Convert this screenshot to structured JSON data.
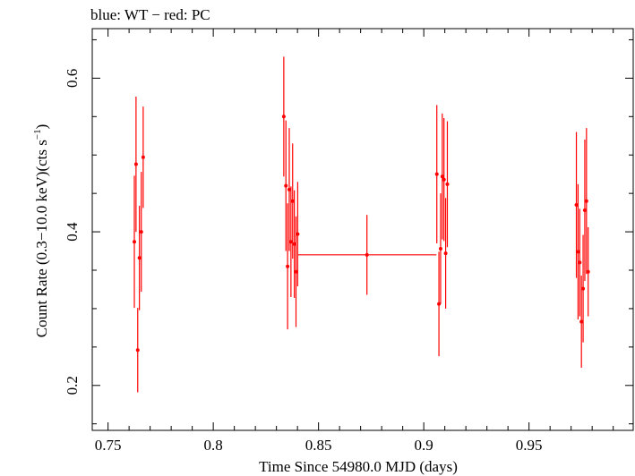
{
  "chart_data": {
    "type": "scatter",
    "title": "blue: WT − red: PC",
    "xlabel": "Time Since 54980.0 MJD (days)",
    "ylabel_main": "Count Rate (0.3−10.0 keV)(cts s",
    "ylabel_sup": "−1",
    "ylabel_end": ")",
    "xlim": [
      0.7425,
      0.9995
    ],
    "ylim": [
      0.1415,
      0.6645
    ],
    "xticks": [
      0.75,
      0.8,
      0.85,
      0.9,
      0.95
    ],
    "xtick_labels": [
      "0.75",
      "0.8",
      "0.85",
      "0.9",
      "0.95"
    ],
    "yticks": [
      0.2,
      0.4,
      0.6
    ],
    "ytick_labels": [
      "0.2",
      "0.4",
      "0.6"
    ],
    "grid": false,
    "series": [
      {
        "color": "#ff0000",
        "points": [
          {
            "x": 0.7625,
            "y": 0.387,
            "xerr": 0.0005,
            "yerr": 0.086
          },
          {
            "x": 0.7633,
            "y": 0.488,
            "xerr": 0.0005,
            "yerr": 0.088
          },
          {
            "x": 0.7641,
            "y": 0.246,
            "xerr": 0.0005,
            "yerr": 0.055
          },
          {
            "x": 0.7649,
            "y": 0.366,
            "xerr": 0.0005,
            "yerr": 0.068
          },
          {
            "x": 0.7658,
            "y": 0.4,
            "xerr": 0.0005,
            "yerr": 0.078
          },
          {
            "x": 0.7667,
            "y": 0.497,
            "xerr": 0.0005,
            "yerr": 0.066
          },
          {
            "x": 0.8335,
            "y": 0.55,
            "xerr": 0.0005,
            "yerr": 0.078
          },
          {
            "x": 0.8345,
            "y": 0.46,
            "xerr": 0.0005,
            "yerr": 0.085
          },
          {
            "x": 0.8353,
            "y": 0.355,
            "xerr": 0.0005,
            "yerr": 0.082
          },
          {
            "x": 0.8361,
            "y": 0.455,
            "xerr": 0.0005,
            "yerr": 0.08
          },
          {
            "x": 0.8369,
            "y": 0.387,
            "xerr": 0.0005,
            "yerr": 0.072
          },
          {
            "x": 0.8377,
            "y": 0.44,
            "xerr": 0.0005,
            "yerr": 0.075
          },
          {
            "x": 0.8385,
            "y": 0.384,
            "xerr": 0.0005,
            "yerr": 0.07
          },
          {
            "x": 0.8393,
            "y": 0.348,
            "xerr": 0.0005,
            "yerr": 0.072
          },
          {
            "x": 0.8401,
            "y": 0.397,
            "xerr": 0.0005,
            "yerr": 0.068
          },
          {
            "x": 0.873,
            "y": 0.37,
            "xerr": 0.033,
            "yerr": 0.052
          },
          {
            "x": 0.9062,
            "y": 0.475,
            "xerr": 0.0005,
            "yerr": 0.09
          },
          {
            "x": 0.9072,
            "y": 0.306,
            "xerr": 0.0005,
            "yerr": 0.068
          },
          {
            "x": 0.908,
            "y": 0.378,
            "xerr": 0.0005,
            "yerr": 0.072
          },
          {
            "x": 0.9088,
            "y": 0.472,
            "xerr": 0.0005,
            "yerr": 0.082
          },
          {
            "x": 0.9096,
            "y": 0.468,
            "xerr": 0.0005,
            "yerr": 0.08
          },
          {
            "x": 0.9104,
            "y": 0.372,
            "xerr": 0.0005,
            "yerr": 0.072
          },
          {
            "x": 0.9112,
            "y": 0.462,
            "xerr": 0.0005,
            "yerr": 0.082
          },
          {
            "x": 0.9725,
            "y": 0.435,
            "xerr": 0.0005,
            "yerr": 0.095
          },
          {
            "x": 0.9733,
            "y": 0.374,
            "xerr": 0.0005,
            "yerr": 0.088
          },
          {
            "x": 0.9741,
            "y": 0.36,
            "xerr": 0.0005,
            "yerr": 0.07
          },
          {
            "x": 0.9749,
            "y": 0.283,
            "xerr": 0.0005,
            "yerr": 0.06
          },
          {
            "x": 0.9757,
            "y": 0.326,
            "xerr": 0.0005,
            "yerr": 0.07
          },
          {
            "x": 0.9765,
            "y": 0.428,
            "xerr": 0.0005,
            "yerr": 0.092
          },
          {
            "x": 0.9773,
            "y": 0.44,
            "xerr": 0.0005,
            "yerr": 0.095
          },
          {
            "x": 0.9781,
            "y": 0.348,
            "xerr": 0.0005,
            "yerr": 0.058
          }
        ]
      }
    ]
  }
}
